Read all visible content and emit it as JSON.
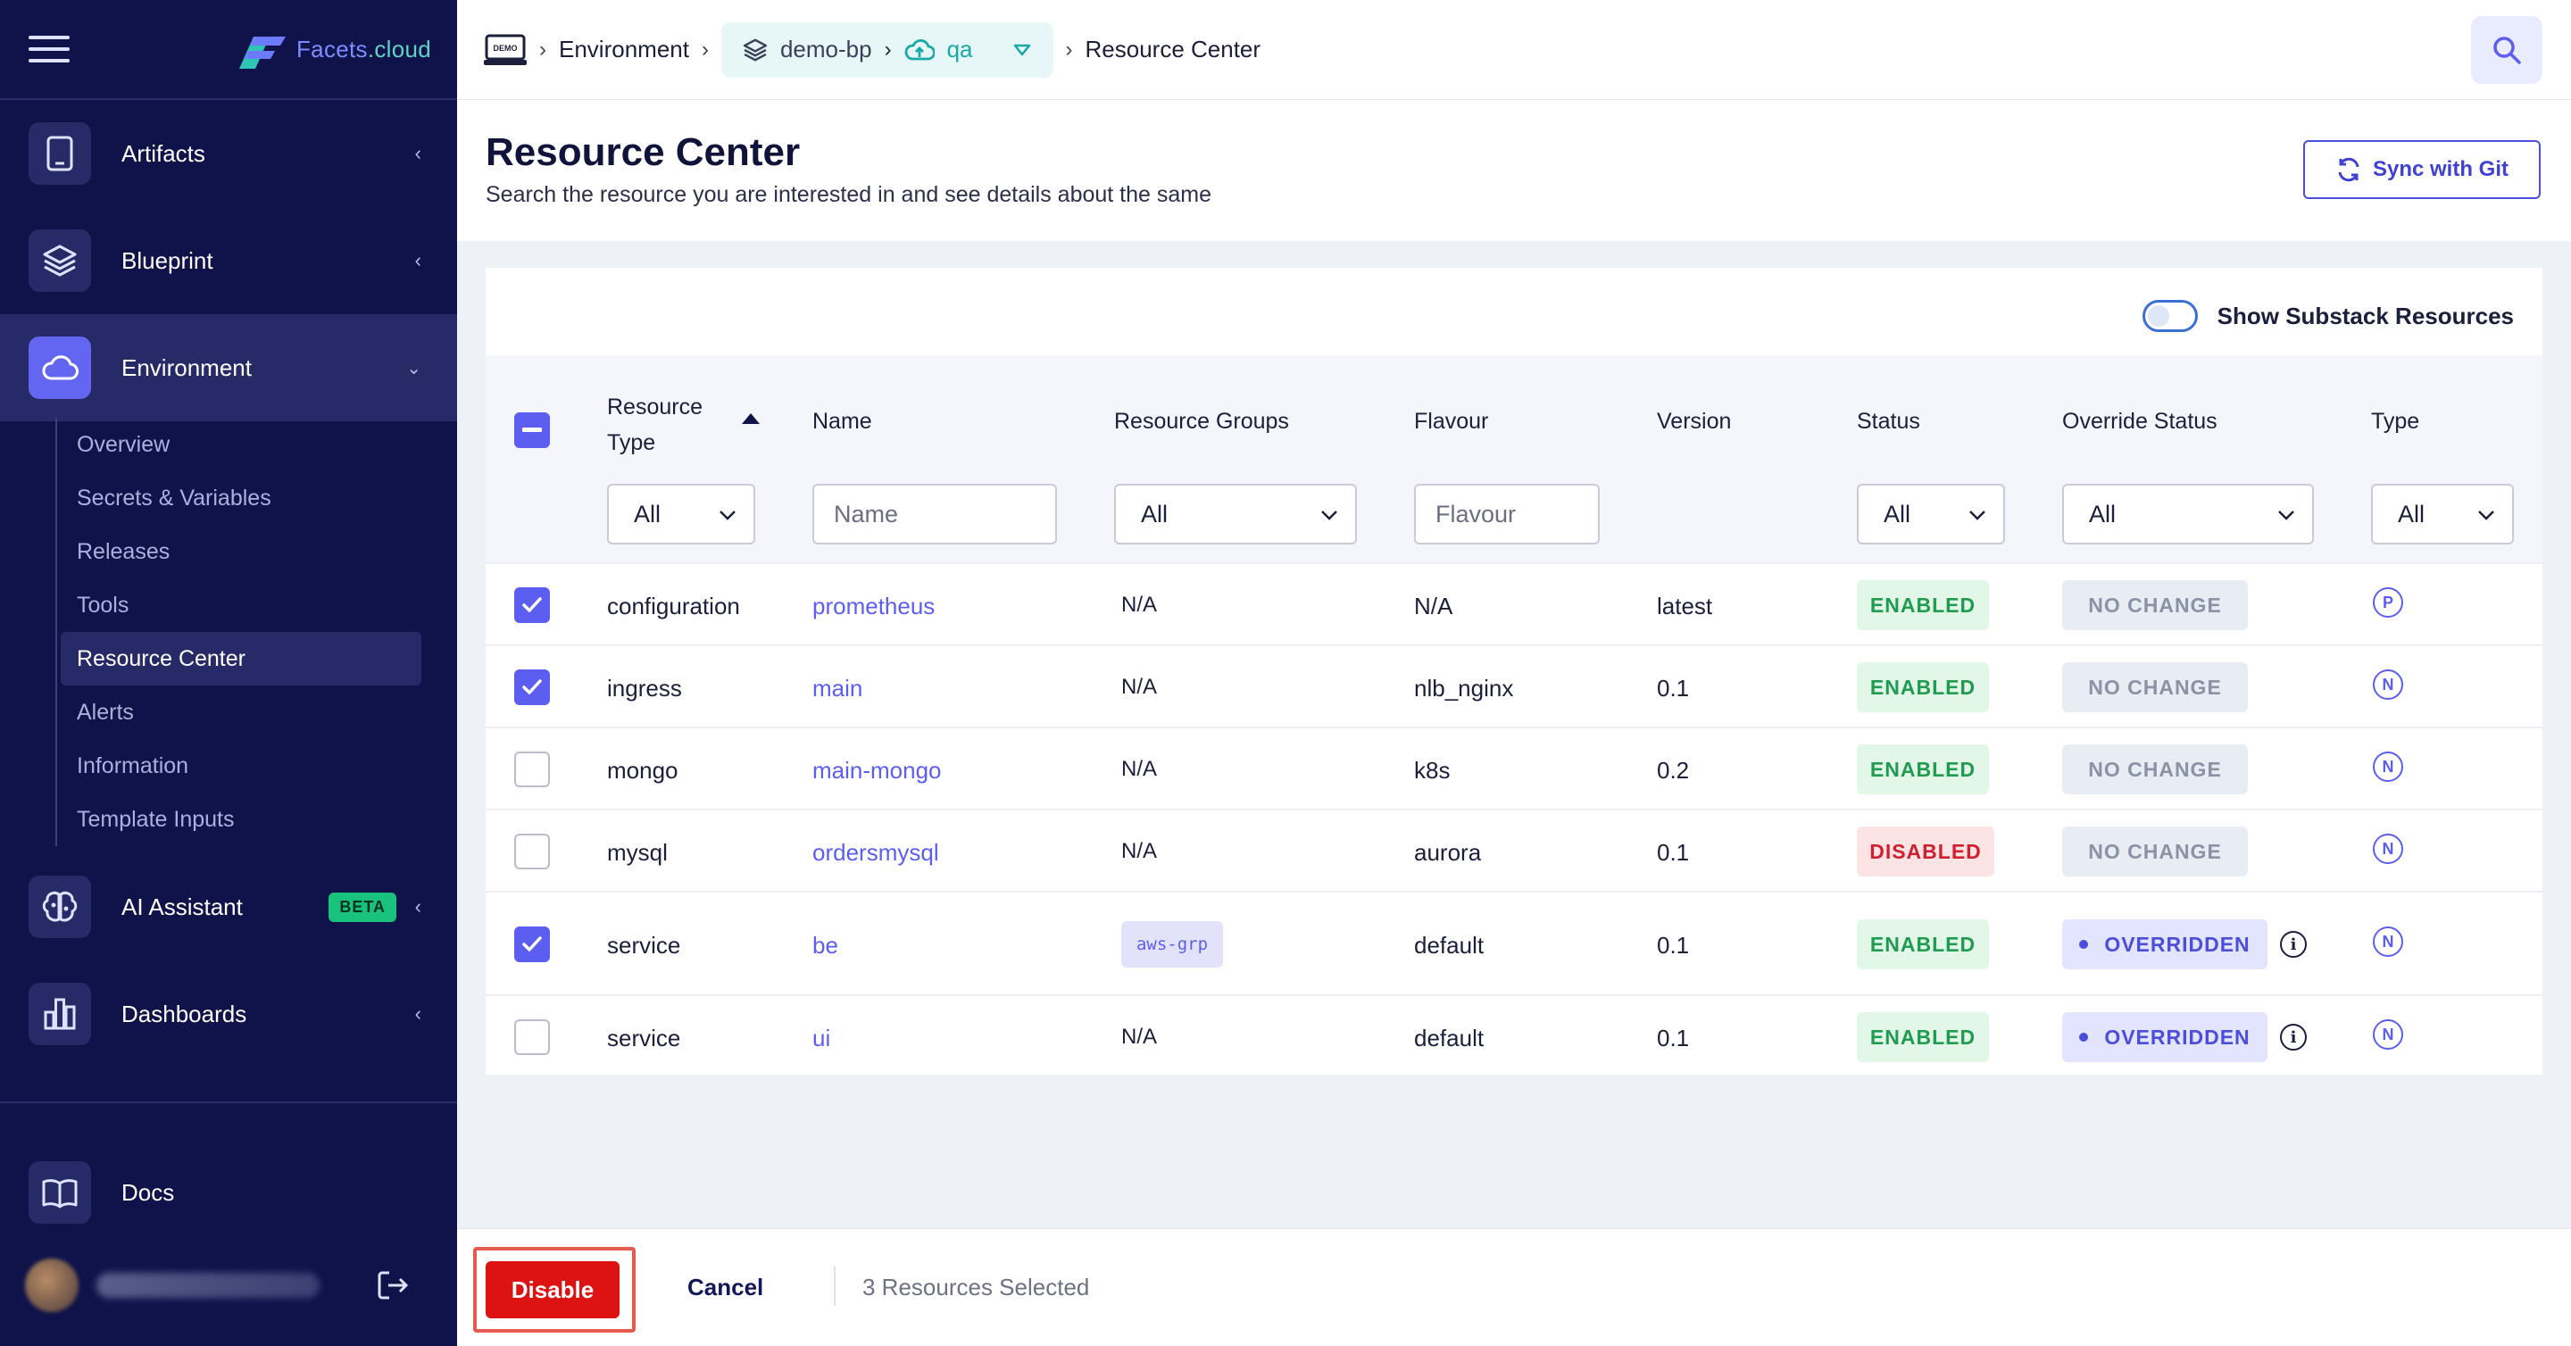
{
  "sidebar": {
    "brand": {
      "part1": "Facets",
      "part2": ".cloud"
    },
    "items": [
      {
        "label": "Artifacts",
        "icon": "tablet-icon"
      },
      {
        "label": "Blueprint",
        "icon": "layers-icon"
      },
      {
        "label": "Environment",
        "icon": "cloud-icon"
      },
      {
        "label": "AI Assistant",
        "icon": "brain-icon",
        "badge": "BETA"
      },
      {
        "label": "Dashboards",
        "icon": "bar-chart-icon"
      },
      {
        "label": "Docs",
        "icon": "book-icon"
      }
    ],
    "sub_items": [
      "Overview",
      "Secrets & Variables",
      "Releases",
      "Tools",
      "Resource Center",
      "Alerts",
      "Information",
      "Template Inputs"
    ],
    "active_sub": "Resource Center"
  },
  "breadcrumb": {
    "env_icon_text": "DEMO",
    "environment": "Environment",
    "project": "demo-bp",
    "env": "qa",
    "current": "Resource Center"
  },
  "header": {
    "title": "Resource Center",
    "subtitle": "Search the resource you are interested in and see details about the same",
    "sync_button": "Sync with Git"
  },
  "table": {
    "toggle_label": "Show Substack Resources",
    "columns": {
      "resource_type": "Resource Type",
      "name": "Name",
      "resource_groups": "Resource Groups",
      "flavour": "Flavour",
      "version": "Version",
      "status": "Status",
      "override_status": "Override Status",
      "type": "Type"
    },
    "filters": {
      "resource_type": "All",
      "name_placeholder": "Name",
      "resource_groups": "All",
      "flavour_placeholder": "Flavour",
      "status": "All",
      "override_status": "All",
      "type": "All"
    },
    "rows": [
      {
        "checked": true,
        "resource_type": "configuration",
        "name": "prometheus",
        "resource_groups": "N/A",
        "flavour": "N/A",
        "version": "latest",
        "status": "ENABLED",
        "override": "NO CHANGE",
        "type": "P"
      },
      {
        "checked": true,
        "resource_type": "ingress",
        "name": "main",
        "resource_groups": "N/A",
        "flavour": "nlb_nginx",
        "version": "0.1",
        "status": "ENABLED",
        "override": "NO CHANGE",
        "type": "N"
      },
      {
        "checked": false,
        "resource_type": "mongo",
        "name": "main-mongo",
        "resource_groups": "N/A",
        "flavour": "k8s",
        "version": "0.2",
        "status": "ENABLED",
        "override": "NO CHANGE",
        "type": "N"
      },
      {
        "checked": false,
        "resource_type": "mysql",
        "name": "ordersmysql",
        "resource_groups": "N/A",
        "flavour": "aurora",
        "version": "0.1",
        "status": "DISABLED",
        "override": "NO CHANGE",
        "type": "N"
      },
      {
        "checked": true,
        "resource_type": "service",
        "name": "be",
        "resource_groups": "aws-grp",
        "flavour": "default",
        "version": "0.1",
        "status": "ENABLED",
        "override": "OVERRIDDEN",
        "type": "N"
      },
      {
        "checked": false,
        "resource_type": "service",
        "name": "ui",
        "resource_groups": "N/A",
        "flavour": "default",
        "version": "0.1",
        "status": "ENABLED",
        "override": "OVERRIDDEN",
        "type": "N"
      }
    ]
  },
  "footer": {
    "disable_button": "Disable",
    "cancel_button": "Cancel",
    "selected_text": "3 Resources Selected"
  },
  "colors": {
    "sidebar_bg": "#10134a",
    "accent": "#5b5ef0",
    "enabled": "#1f9c50",
    "disabled": "#d21f2f",
    "danger_button": "#dd1313"
  }
}
